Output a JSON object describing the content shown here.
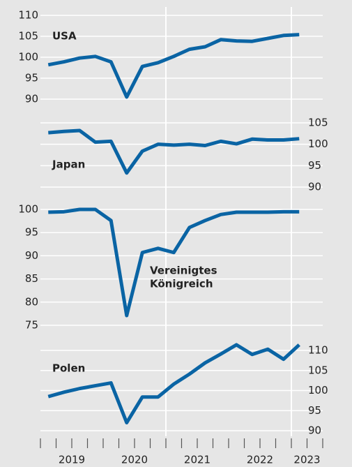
{
  "chart_data": {
    "type": "line",
    "color": "#0a64a4",
    "grid": true,
    "x": [
      2019.125,
      2019.375,
      2019.625,
      2019.875,
      2020.125,
      2020.375,
      2020.625,
      2020.875,
      2021.125,
      2021.375,
      2021.625,
      2021.875,
      2022.125,
      2022.375,
      2022.625,
      2022.875,
      2023.125
    ],
    "xlim": [
      2019,
      2023.5
    ],
    "xticks": [
      {
        "value": 2019.5,
        "label": "2019"
      },
      {
        "value": 2020.5,
        "label": "2020"
      },
      {
        "value": 2021.5,
        "label": "2021"
      },
      {
        "value": 2022.5,
        "label": "2022"
      },
      {
        "value": 2023.25,
        "label": "2023"
      }
    ],
    "xminorticks": [
      2019,
      2019.25,
      2019.5,
      2019.75,
      2020,
      2020.25,
      2020.5,
      2020.75,
      2021,
      2021.25,
      2021.5,
      2021.75,
      2022,
      2022.25,
      2022.5,
      2022.75,
      2023,
      2023.25,
      2023.5
    ],
    "xgrid": [
      2021,
      2023
    ],
    "panels": [
      {
        "label_lines": [
          "USA"
        ],
        "axis_side": "left",
        "ylim": [
          90,
          110
        ],
        "yticks": [
          90,
          95,
          100,
          105,
          110
        ],
        "values": [
          98.2,
          98.9,
          99.8,
          100.2,
          98.9,
          90.5,
          97.8,
          98.7,
          100.2,
          101.9,
          102.5,
          104.2,
          103.9,
          103.8,
          104.5,
          105.2,
          105.4
        ]
      },
      {
        "label_lines": [
          "Japan"
        ],
        "axis_side": "right",
        "ylim": [
          90,
          105
        ],
        "yticks": [
          90,
          95,
          100,
          105
        ],
        "values": [
          102.7,
          103,
          103.2,
          100.5,
          100.7,
          93.3,
          98.4,
          100,
          99.8,
          100,
          99.7,
          100.7,
          100.1,
          101.2,
          101,
          101,
          101.3
        ]
      },
      {
        "label_lines": [
          "Vereinigtes",
          "Königreich"
        ],
        "axis_side": "left",
        "ylim": [
          75,
          100
        ],
        "yticks": [
          75,
          80,
          85,
          90,
          95,
          100
        ],
        "values": [
          99.4,
          99.5,
          100,
          100,
          97.6,
          77.1,
          90.7,
          91.6,
          90.7,
          96.1,
          97.6,
          98.9,
          99.4,
          99.4,
          99.4,
          99.5,
          99.5
        ]
      },
      {
        "label_lines": [
          "Polen"
        ],
        "axis_side": "right",
        "ylim": [
          90,
          110
        ],
        "yticks": [
          90,
          95,
          100,
          105,
          110
        ],
        "values": [
          98.5,
          99.6,
          100.5,
          101.2,
          101.9,
          92,
          98.4,
          98.4,
          101.6,
          104.1,
          106.9,
          109.1,
          111.4,
          109,
          110.3,
          107.8,
          111.4
        ]
      }
    ]
  }
}
